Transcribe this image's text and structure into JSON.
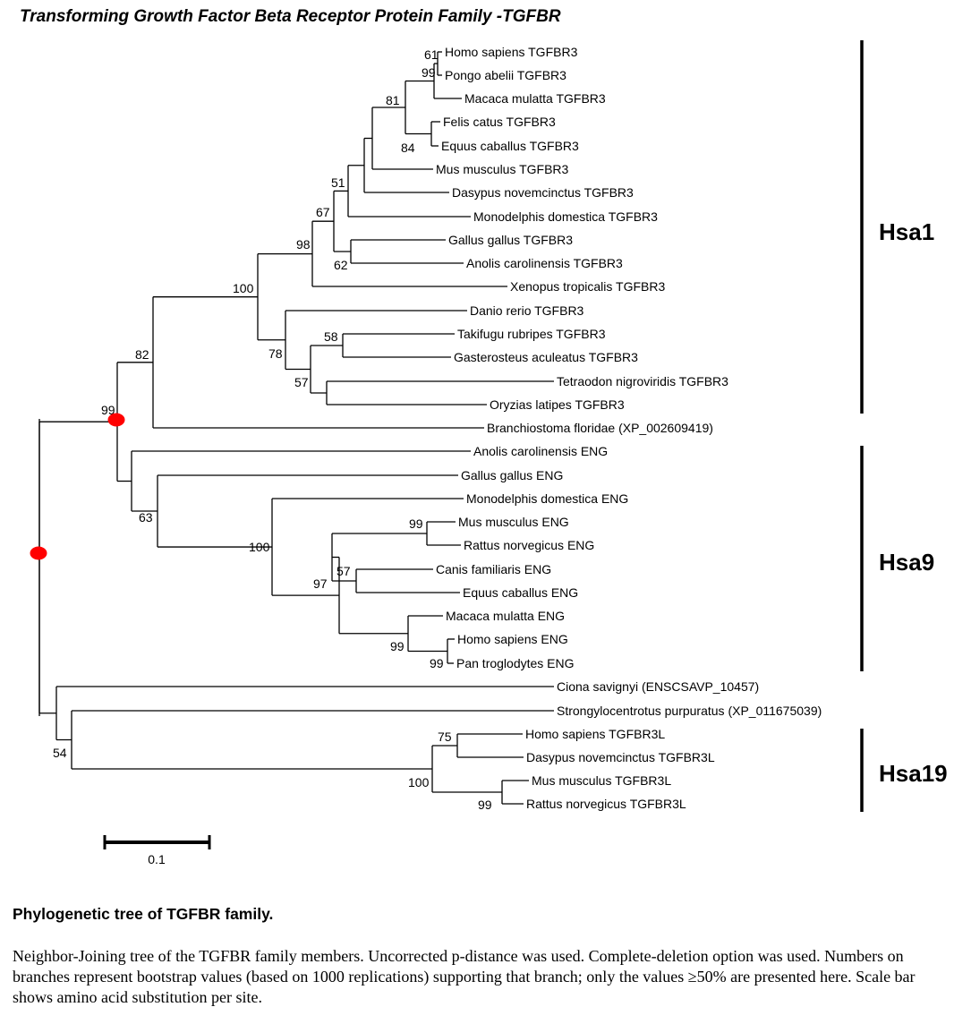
{
  "title": "Transforming Growth Factor Beta Receptor Protein Family -TGFBR",
  "leaves": [
    "Homo sapiens TGFBR3",
    "Pongo abelii TGFBR3",
    "Macaca mulatta TGFBR3",
    "Felis catus TGFBR3",
    "Equus caballus TGFBR3",
    "Mus musculus TGFBR3",
    "Dasypus novemcinctus TGFBR3",
    "Monodelphis domestica TGFBR3",
    "Gallus gallus TGFBR3",
    "Anolis carolinensis TGFBR3",
    "Xenopus tropicalis TGFBR3",
    "Danio rerio TGFBR3",
    "Takifugu rubripes TGFBR3",
    "Gasterosteus aculeatus TGFBR3",
    "Tetraodon nigroviridis TGFBR3",
    "Oryzias latipes TGFBR3",
    "Branchiostoma floridae (XP_002609419)",
    "Anolis carolinensis ENG",
    "Gallus gallus ENG",
    "Monodelphis domestica ENG",
    "Mus musculus ENG",
    "Rattus norvegicus ENG",
    "Canis familiaris ENG",
    "Equus caballus ENG",
    "Macaca mulatta ENG",
    "Homo sapiens ENG",
    "Pan troglodytes ENG",
    "Ciona savignyi (ENSCSAVP_10457)",
    "Strongylocentrotus purpuratus (XP_011675039)",
    "Homo sapiens TGFBR3L",
    "Dasypus novemcinctus TGFBR3L",
    "Mus musculus TGFBR3L",
    "Rattus norvegicus TGFBR3L"
  ],
  "bootstrap": [
    "61",
    "99",
    "81",
    "84",
    "51",
    "67",
    "98",
    "62",
    "100",
    "58",
    "78",
    "57",
    "82",
    "99",
    "99",
    "63",
    "100",
    "57",
    "97",
    "99",
    "99",
    "54",
    "75",
    "100",
    "99"
  ],
  "groups": [
    "Hsa1",
    "Hsa9",
    "Hsa19"
  ],
  "scale_label": "0.1",
  "caption": {
    "title": "Phylogenetic tree of TGFBR family.",
    "body": "Neighbor-Joining tree of the TGFBR family members. Uncorrected p-distance was used. Complete-deletion option was used. Numbers on branches represent bootstrap values (based on 1000 replications) supporting that branch; only the values ≥50% are presented here. Scale bar shows amino acid substitution per site."
  },
  "colors": {
    "marker": "#ff0000",
    "line": "#000000"
  }
}
